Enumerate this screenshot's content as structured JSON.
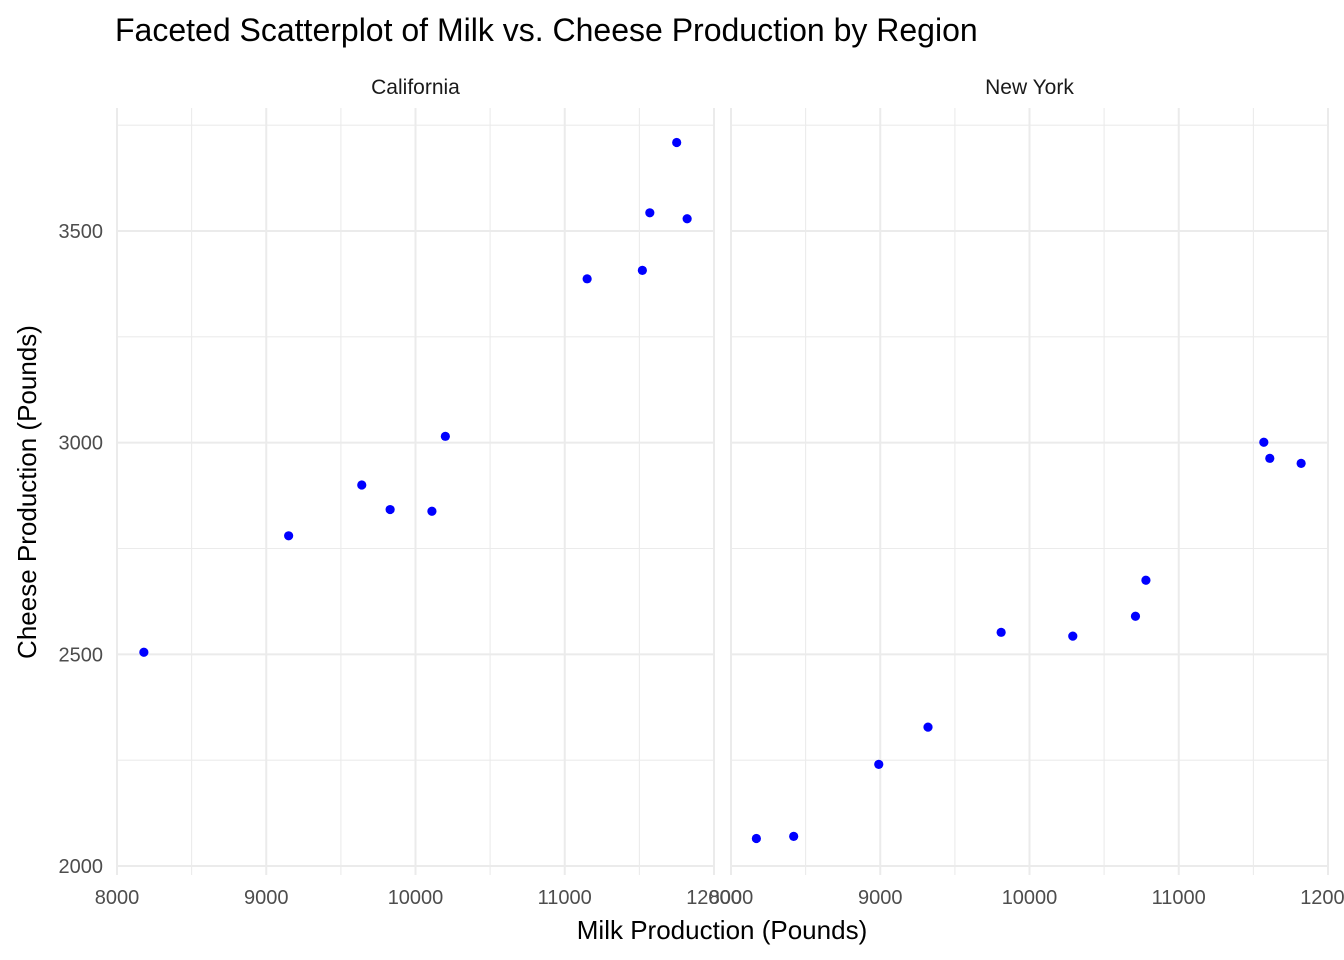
{
  "chart_data": {
    "type": "scatter",
    "title": "Faceted Scatterplot of Milk vs. Cheese Production by Region",
    "xlabel": "Milk Production (Pounds)",
    "ylabel": "Cheese Production (Pounds)",
    "xlim": [
      8000,
      12000
    ],
    "ylim": [
      2000,
      3750
    ],
    "x_ticks": [
      "8000",
      "9000",
      "10000",
      "11000",
      "12000"
    ],
    "y_ticks": [
      "2000",
      "2500",
      "3000",
      "3500"
    ],
    "point_color": "#0000ff",
    "grid": true,
    "facets": [
      {
        "name": "California",
        "points": [
          {
            "x": 8180,
            "y": 2505
          },
          {
            "x": 9150,
            "y": 2780
          },
          {
            "x": 9640,
            "y": 2900
          },
          {
            "x": 9830,
            "y": 2842
          },
          {
            "x": 10110,
            "y": 2838
          },
          {
            "x": 10200,
            "y": 3015
          },
          {
            "x": 11150,
            "y": 3387
          },
          {
            "x": 11520,
            "y": 3407
          },
          {
            "x": 11570,
            "y": 3543
          },
          {
            "x": 11750,
            "y": 3709
          },
          {
            "x": 11820,
            "y": 3529
          }
        ]
      },
      {
        "name": "New York",
        "points": [
          {
            "x": 8170,
            "y": 2065
          },
          {
            "x": 8420,
            "y": 2070
          },
          {
            "x": 8990,
            "y": 2240
          },
          {
            "x": 9320,
            "y": 2328
          },
          {
            "x": 9810,
            "y": 2552
          },
          {
            "x": 10290,
            "y": 2543
          },
          {
            "x": 10710,
            "y": 2590
          },
          {
            "x": 10780,
            "y": 2675
          },
          {
            "x": 11570,
            "y": 3001
          },
          {
            "x": 11610,
            "y": 2963
          },
          {
            "x": 11820,
            "y": 2951
          }
        ]
      }
    ]
  }
}
